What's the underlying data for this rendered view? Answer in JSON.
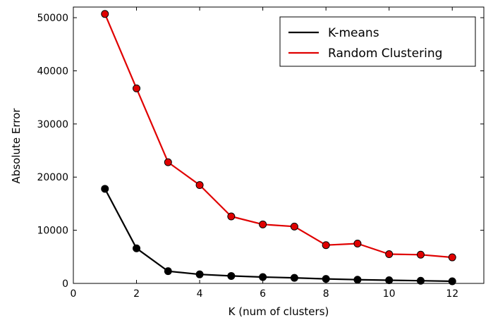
{
  "chart_data": {
    "type": "line",
    "title": "",
    "xlabel": "K (num of clusters)",
    "ylabel": "Absolute Error",
    "xlim": [
      0,
      13
    ],
    "ylim": [
      0,
      52000
    ],
    "x_ticks": [
      0,
      2,
      4,
      6,
      8,
      10,
      12
    ],
    "y_ticks": [
      0,
      10000,
      20000,
      30000,
      40000,
      50000
    ],
    "x": [
      1,
      2,
      3,
      4,
      5,
      6,
      7,
      8,
      9,
      10,
      11,
      12
    ],
    "series": [
      {
        "name": "K-means",
        "color": "#000000",
        "values": [
          17800,
          6600,
          2300,
          1700,
          1400,
          1200,
          1050,
          850,
          700,
          600,
          500,
          400
        ]
      },
      {
        "name": "Random Clustering",
        "color": "#e00000",
        "values": [
          50700,
          36700,
          22800,
          18500,
          12600,
          11100,
          10700,
          7200,
          7500,
          5500,
          5400,
          4900
        ]
      }
    ],
    "grid": false,
    "legend_position": "top-right"
  }
}
